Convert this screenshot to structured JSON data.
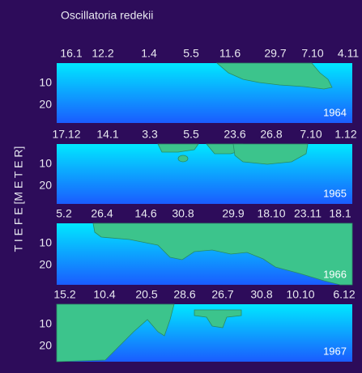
{
  "title": "Oscillatoria redekii",
  "axis_label": "T I E F E  [M E T E R]",
  "panels": [
    {
      "year": "1964",
      "dates": [
        "16.1",
        "12.2",
        "1.4",
        "5.5",
        "11.6",
        "29.7",
        "7.10",
        "4.11"
      ],
      "yticks": [
        "10",
        "20"
      ]
    },
    {
      "year": "1965",
      "dates": [
        "17.12",
        "14.1",
        "3.3",
        "5.5",
        "23.6",
        "26.8",
        "7.10",
        "1.12"
      ],
      "yticks": [
        "10",
        "20"
      ]
    },
    {
      "year": "1966",
      "dates": [
        "5.2",
        "26.4",
        "14.6",
        "30.8",
        "29.9",
        "18.10",
        "23.11",
        "18.1"
      ],
      "yticks": [
        "10",
        "20"
      ]
    },
    {
      "year": "1967",
      "dates": [
        "15.2",
        "10.4",
        "20.5",
        "28.6",
        "26.7",
        "30.8",
        "10.10",
        "6.12"
      ],
      "yticks": [
        "10",
        "20"
      ]
    }
  ]
}
